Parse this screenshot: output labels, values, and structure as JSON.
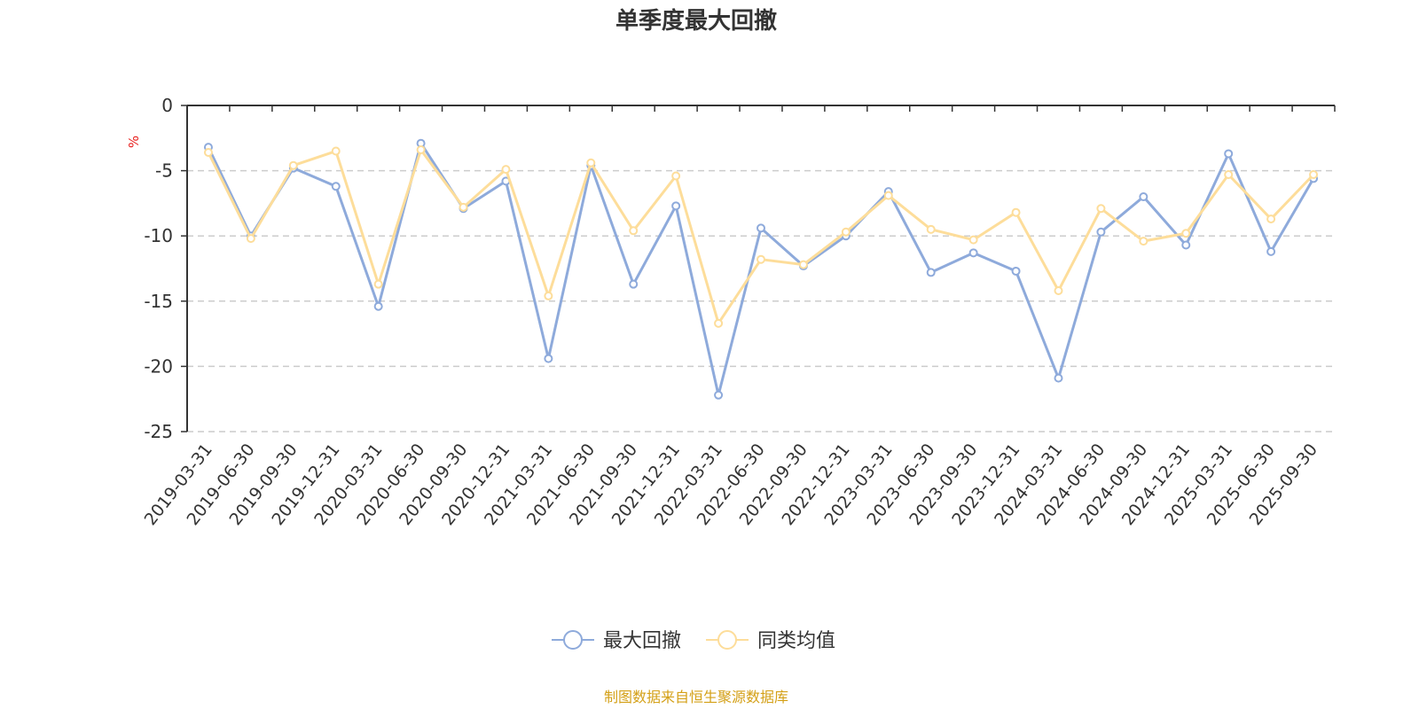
{
  "chart_data": {
    "type": "line",
    "title": "单季度最大回撤",
    "ylabel": "%",
    "ylim": [
      -25,
      0
    ],
    "yticks": [
      0,
      -5,
      -10,
      -15,
      -20,
      -25
    ],
    "grid": true,
    "legend_position": "bottom-center",
    "categories": [
      "2019-03-31",
      "2019-06-30",
      "2019-09-30",
      "2019-12-31",
      "2020-03-31",
      "2020-06-30",
      "2020-09-30",
      "2020-12-31",
      "2021-03-31",
      "2021-06-30",
      "2021-09-30",
      "2021-12-31",
      "2022-03-31",
      "2022-06-30",
      "2022-09-30",
      "2022-12-31",
      "2023-03-31",
      "2023-06-30",
      "2023-09-30",
      "2023-12-31",
      "2024-03-31",
      "2024-06-30",
      "2024-09-30",
      "2024-12-31",
      "2025-03-31",
      "2025-06-30",
      "2025-09-30"
    ],
    "series": [
      {
        "name": "最大回撤",
        "color": "#8eaadb",
        "values": [
          -3.2,
          -10.0,
          -4.8,
          -6.2,
          -15.4,
          -2.9,
          -7.9,
          -5.8,
          -19.4,
          -4.6,
          -13.7,
          -7.7,
          -22.2,
          -9.4,
          -12.3,
          -10.0,
          -6.6,
          -12.8,
          -11.3,
          -12.7,
          -20.9,
          -9.7,
          -7.0,
          -10.7,
          -3.7,
          -11.2,
          -5.6
        ]
      },
      {
        "name": "同类均值",
        "color": "#fddd9a",
        "values": [
          -3.6,
          -10.2,
          -4.6,
          -3.5,
          -13.7,
          -3.4,
          -7.8,
          -4.9,
          -14.6,
          -4.4,
          -9.6,
          -5.4,
          -16.7,
          -11.8,
          -12.2,
          -9.7,
          -6.9,
          -9.5,
          -10.3,
          -8.2,
          -14.2,
          -7.9,
          -10.4,
          -9.8,
          -5.3,
          -8.7,
          -5.3
        ]
      }
    ],
    "source_note": "制图数据来自恒生聚源数据库"
  }
}
